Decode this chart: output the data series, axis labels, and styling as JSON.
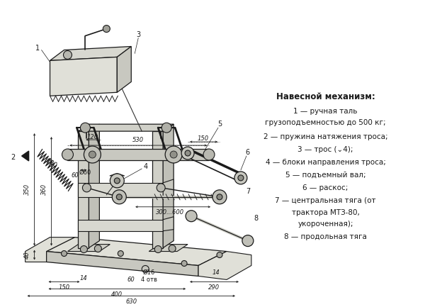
{
  "bg_color": "#ffffff",
  "title": "Навесной механизм:",
  "legend": [
    {
      "text": "1 — ручная таль",
      "indent": false
    },
    {
      "text": "грузоподъемностью до 500 кг;",
      "indent": false
    },
    {
      "text": "2 — пружина натяжения троса;",
      "indent": false
    },
    {
      "text": "3 — трос (⌄4);",
      "indent": false
    },
    {
      "text": "4 — блоки направления троса;",
      "indent": false
    },
    {
      "text": "5 — подъемный вал;",
      "indent": false
    },
    {
      "text": "6 — раскос;",
      "indent": false
    },
    {
      "text": "7 — центральная тяга (от",
      "indent": false
    },
    {
      "text": "трактора МТЗ-80,",
      "indent": false
    },
    {
      "text": "укороченная);",
      "indent": false
    },
    {
      "text": "8 — продольная тяга",
      "indent": false
    }
  ]
}
